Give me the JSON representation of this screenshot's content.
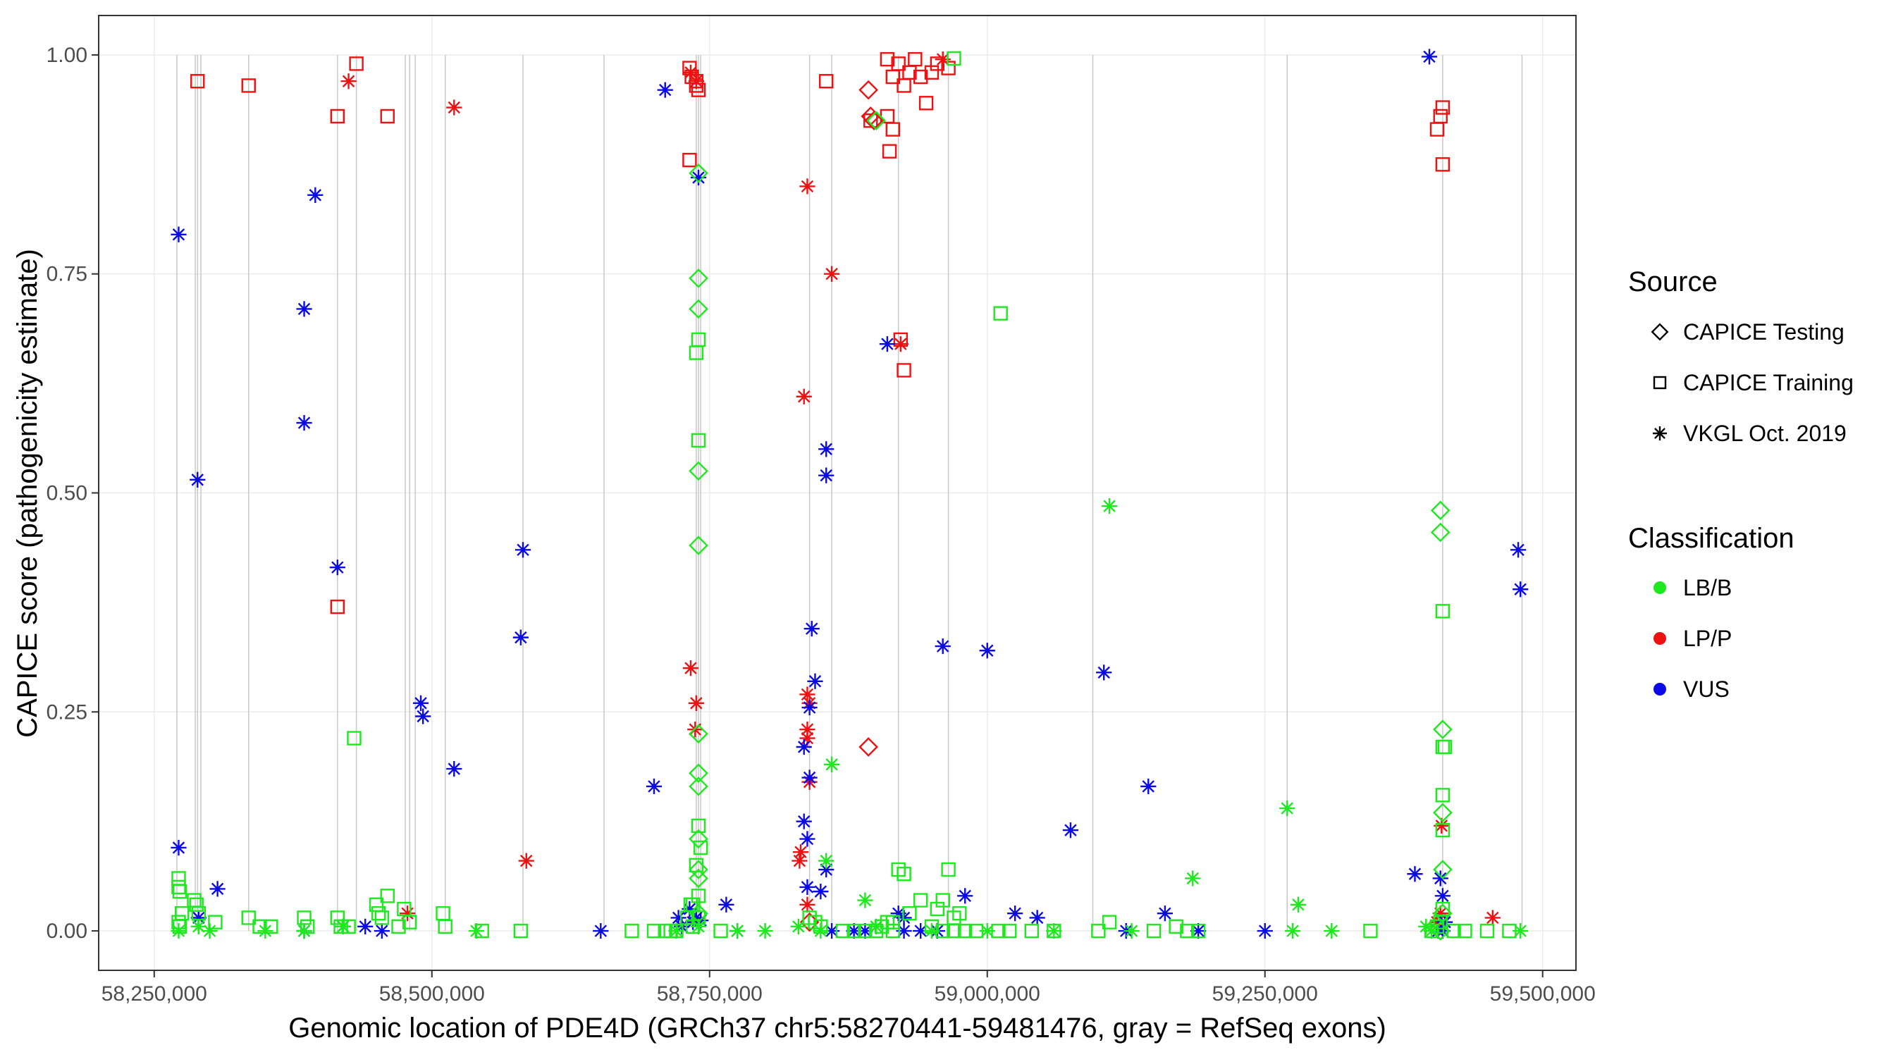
{
  "chart_data": {
    "type": "scatter",
    "title": "",
    "xlabel": "Genomic location of PDE4D (GRCh37 chr5:58270441-59481476, gray = RefSeq exons)",
    "ylabel": "CAPICE score (pathogenicity estimate)",
    "xlim": [
      58200000,
      59530000
    ],
    "ylim": [
      -0.045,
      1.045
    ],
    "x_ticks": [
      58250000,
      58500000,
      58750000,
      59000000,
      59250000,
      59500000
    ],
    "x_tick_labels": [
      "58,250,000",
      "58,500,000",
      "58,750,000",
      "59,000,000",
      "59,250,000",
      "59,500,000"
    ],
    "y_ticks": [
      0,
      0.25,
      0.5,
      0.75,
      1.0
    ],
    "y_tick_labels": [
      "0.00",
      "0.25",
      "0.50",
      "0.75",
      "1.00"
    ],
    "exons": [
      58270441,
      58287000,
      58289000,
      58292000,
      58335000,
      58415000,
      58432000,
      58476000,
      58480000,
      58485000,
      58512000,
      58582000,
      58655000,
      58738000,
      58740000,
      58742000,
      58840000,
      58860000,
      58920000,
      58965000,
      59095000,
      59270000,
      59410000,
      59481476
    ],
    "legend": {
      "source_title": "Source",
      "source_items": [
        {
          "label": "CAPICE Testing",
          "shape": "diamond"
        },
        {
          "label": "CAPICE Training",
          "shape": "square"
        },
        {
          "label": "VKGL Oct. 2019",
          "shape": "asterisk"
        }
      ],
      "class_title": "Classification",
      "class_items": [
        {
          "label": "LB/B",
          "key": "LBB",
          "color": "#1ee81e"
        },
        {
          "label": "LP/P",
          "key": "LPP",
          "color": "#ee1111"
        },
        {
          "label": "VUS",
          "key": "VUS",
          "color": "#0a0ae6"
        }
      ]
    },
    "series": [
      {
        "name": "LP/P - VKGL Oct. 2019",
        "shape": "asterisk",
        "class": "LPP",
        "x": [
          58425000,
          58520000,
          58478000,
          58585000,
          58733000,
          58738000,
          58738000,
          58737000,
          58733000,
          58838000,
          58835000,
          58831000,
          58860000,
          58922000,
          58960000,
          58838000,
          58840000,
          58838000,
          58840000,
          58838000,
          58832000,
          58838000,
          59409000,
          59408000,
          59405000,
          59455000
        ],
        "y": [
          0.97,
          0.94,
          0.02,
          0.08,
          0.98,
          0.97,
          0.26,
          0.23,
          0.3,
          0.85,
          0.61,
          0.08,
          0.75,
          0.67,
          0.995,
          0.27,
          0.26,
          0.22,
          0.17,
          0.23,
          0.09,
          0.03,
          0.12,
          0.02,
          0.01,
          0.015
        ]
      },
      {
        "name": "LP/P - CAPICE Training",
        "shape": "square",
        "class": "LPP",
        "x": [
          58289000,
          58335000,
          58415000,
          58432000,
          58460000,
          58415000,
          58732000,
          58734000,
          58738000,
          58740000,
          58738000,
          58732000,
          58855000,
          58910000,
          58915000,
          58920000,
          58925000,
          58930000,
          58935000,
          58940000,
          58945000,
          58950000,
          58955000,
          58965000,
          58912000,
          58915000,
          58925000,
          58922000,
          59405000,
          59410000,
          59408000,
          59410000,
          58895000,
          58910000
        ],
        "y": [
          0.97,
          0.965,
          0.93,
          0.99,
          0.93,
          0.37,
          0.985,
          0.975,
          0.97,
          0.96,
          0.965,
          0.88,
          0.97,
          0.995,
          0.975,
          0.99,
          0.965,
          0.98,
          0.995,
          0.975,
          0.945,
          0.98,
          0.99,
          0.985,
          0.89,
          0.915,
          0.64,
          0.675,
          0.915,
          0.94,
          0.93,
          0.875,
          0.925,
          0.93
        ]
      },
      {
        "name": "LP/P - CAPICE Testing",
        "shape": "diamond",
        "class": "LPP",
        "x": [
          58893000,
          58895000,
          58898000,
          58893000,
          58840000
        ],
        "y": [
          0.96,
          0.93,
          0.925,
          0.21,
          0.01
        ]
      },
      {
        "name": "VUS - VKGL Oct. 2019",
        "shape": "asterisk",
        "class": "VUS",
        "x": [
          58272000,
          58289000,
          58272000,
          58290000,
          58307000,
          58385000,
          58395000,
          58385000,
          58385000,
          58415000,
          58420000,
          58440000,
          58455000,
          58490000,
          58492000,
          58520000,
          58582000,
          58580000,
          58652000,
          58700000,
          58710000,
          58722000,
          58725000,
          58735000,
          58740000,
          58742000,
          58775000,
          58835000,
          58838000,
          58840000,
          58842000,
          58845000,
          58835000,
          58838000,
          58840000,
          58855000,
          58855000,
          58855000,
          58850000,
          58860000,
          58880000,
          58910000,
          58920000,
          58925000,
          58940000,
          58955000,
          58960000,
          59000000,
          58980000,
          59025000,
          59045000,
          59075000,
          59105000,
          59125000,
          59145000,
          59160000,
          59190000,
          59250000,
          59385000,
          59398000,
          59408000,
          59410000,
          59412000,
          59406000,
          59410000,
          59478000,
          59480000,
          58738000,
          58732000,
          58765000,
          58925000,
          58890000
        ],
        "y": [
          0.795,
          0.515,
          0.095,
          0.015,
          0.048,
          0.71,
          0.84,
          0.58,
          0.0,
          0.415,
          0.005,
          0.005,
          0.0,
          0.26,
          0.245,
          0.185,
          0.435,
          0.335,
          0.0,
          0.165,
          0.96,
          0.015,
          0.005,
          0.01,
          0.86,
          0.012,
          0.0,
          0.125,
          0.105,
          0.255,
          0.345,
          0.285,
          0.21,
          0.05,
          0.175,
          0.55,
          0.52,
          0.07,
          0.045,
          0.0,
          0.0,
          0.67,
          0.02,
          0.015,
          0.0,
          0.0,
          0.325,
          0.32,
          0.04,
          0.02,
          0.015,
          0.115,
          0.295,
          0.0,
          0.165,
          0.02,
          0.0,
          0.0,
          0.065,
          0.998,
          0.06,
          0.04,
          0.01,
          0.0,
          0.0,
          0.435,
          0.39,
          0.015,
          0.025,
          0.03,
          0.0,
          0.0
        ]
      },
      {
        "name": "LB/B - VKGL Oct. 2019",
        "shape": "asterisk",
        "class": "LBB",
        "x": [
          58272000,
          58290000,
          58300000,
          58350000,
          58385000,
          58420000,
          58540000,
          58720000,
          58775000,
          58800000,
          58830000,
          58850000,
          58855000,
          58860000,
          58890000,
          58900000,
          58950000,
          59000000,
          59060000,
          59110000,
          59185000,
          59270000,
          59275000,
          59280000,
          59310000,
          59395000,
          59400000,
          59480000,
          58740000,
          59130000
        ],
        "y": [
          0.0,
          0.005,
          0.0,
          0.0,
          0.0,
          0.005,
          0.0,
          0.0,
          0.0,
          0.0,
          0.005,
          0.0,
          0.08,
          0.19,
          0.035,
          0.005,
          0.0,
          0.0,
          0.0,
          0.485,
          0.06,
          0.14,
          0.0,
          0.03,
          0.0,
          0.005,
          0.0,
          0.0,
          0.005,
          0.0
        ]
      },
      {
        "name": "LB/B - CAPICE Training",
        "shape": "square",
        "class": "LBB",
        "x": [
          58272000,
          58272000,
          58273000,
          58275000,
          58272000,
          58273000,
          58286000,
          58288000,
          58290000,
          58305000,
          58335000,
          58345000,
          58355000,
          58385000,
          58388000,
          58415000,
          58418000,
          58425000,
          58450000,
          58452000,
          58455000,
          58460000,
          58470000,
          58475000,
          58480000,
          58510000,
          58512000,
          58545000,
          58580000,
          58430000,
          58720000,
          58730000,
          58735000,
          58738000,
          58740000,
          58740000,
          58738000,
          58740000,
          58742000,
          58740000,
          58740000,
          58733000,
          58735000,
          58680000,
          58700000,
          58710000,
          58715000,
          58760000,
          58840000,
          58845000,
          58850000,
          58870000,
          58880000,
          58890000,
          58900000,
          58905000,
          58910000,
          58920000,
          58925000,
          58930000,
          58940000,
          58950000,
          58955000,
          58960000,
          58965000,
          58970000,
          58975000,
          58915000,
          58915000,
          58960000,
          58970000,
          58980000,
          58990000,
          59010000,
          59020000,
          59040000,
          59060000,
          59100000,
          59110000,
          59150000,
          59170000,
          59180000,
          59190000,
          59345000,
          59400000,
          59405000,
          59408000,
          59410000,
          59410000,
          59412000,
          59410000,
          59410000,
          59410000,
          59420000,
          59430000,
          59450000,
          59470000,
          59012000,
          58970000
        ],
        "y": [
          0.06,
          0.05,
          0.045,
          0.02,
          0.01,
          0.005,
          0.035,
          0.03,
          0.02,
          0.01,
          0.015,
          0.005,
          0.005,
          0.015,
          0.005,
          0.015,
          0.005,
          0.005,
          0.03,
          0.02,
          0.015,
          0.04,
          0.005,
          0.025,
          0.01,
          0.02,
          0.005,
          0.0,
          0.0,
          0.22,
          0.0,
          0.015,
          0.03,
          0.075,
          0.12,
          0.675,
          0.66,
          0.56,
          0.095,
          0.04,
          0.015,
          0.03,
          0.005,
          0.0,
          0.0,
          0.0,
          0.0,
          0.0,
          0.015,
          0.01,
          0.005,
          0.0,
          0.0,
          0.0,
          0.0,
          0.005,
          0.01,
          0.07,
          0.065,
          0.02,
          0.035,
          0.005,
          0.025,
          0.035,
          0.07,
          0.015,
          0.02,
          0.0,
          0.01,
          0.0,
          0.0,
          0.0,
          0.0,
          0.0,
          0.0,
          0.0,
          0.0,
          0.0,
          0.01,
          0.0,
          0.005,
          0.0,
          0.0,
          0.0,
          0.0,
          0.005,
          0.01,
          0.365,
          0.21,
          0.21,
          0.155,
          0.115,
          0.025,
          0.0,
          0.0,
          0.0,
          0.0,
          0.705,
          0.996
        ]
      },
      {
        "name": "LB/B - CAPICE Testing",
        "shape": "diamond",
        "class": "LBB",
        "x": [
          58740000,
          58740000,
          58740000,
          58740000,
          58740000,
          58740000,
          58740000,
          58740000,
          58740000,
          58740000,
          58740000,
          58740000,
          58900000,
          59408000,
          59408000,
          59410000,
          59410000,
          59410000,
          59410000,
          59408000
        ],
        "y": [
          0.865,
          0.745,
          0.71,
          0.525,
          0.44,
          0.225,
          0.18,
          0.165,
          0.105,
          0.07,
          0.06,
          0.02,
          0.925,
          0.48,
          0.455,
          0.23,
          0.135,
          0.07,
          0.02,
          0.0
        ]
      }
    ]
  }
}
